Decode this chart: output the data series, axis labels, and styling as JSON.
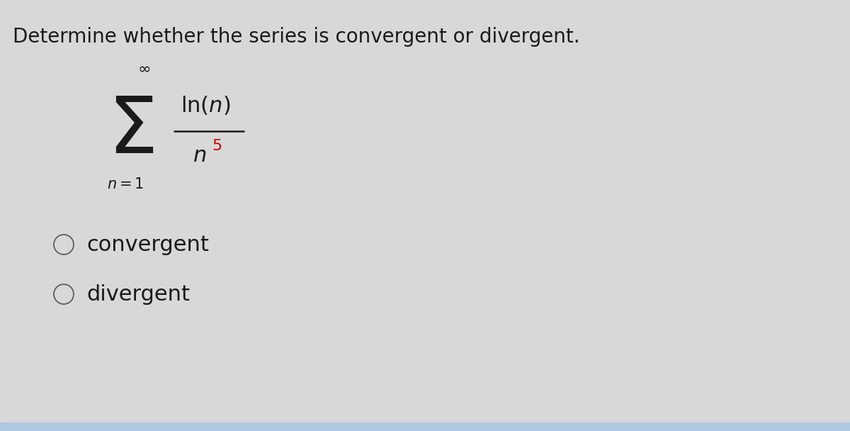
{
  "title": "Determine whether the series is convergent or divergent.",
  "title_fontsize": 20,
  "title_color": "#1a1a1a",
  "background_color": "#d8d8d8",
  "bottom_bar_color": "#b0c8e0",
  "sigma_fontsize": 80,
  "sigma_color": "#1a1a1a",
  "infinity_fontsize": 16,
  "n1_fontsize": 15,
  "numerator_fontsize": 22,
  "numerator_color": "#1a1a1a",
  "line_color": "#1a1a1a",
  "line_lw": 1.8,
  "denom_n_fontsize": 22,
  "denom_n_color": "#1a1a1a",
  "denom_5_fontsize": 16,
  "denom_5_color": "#cc0000",
  "option1_text": "convergent",
  "option2_text": "divergent",
  "option_fontsize": 22,
  "option_color": "#1a1a1a",
  "circle_edge_color": "#555555",
  "circle_lw": 1.2
}
